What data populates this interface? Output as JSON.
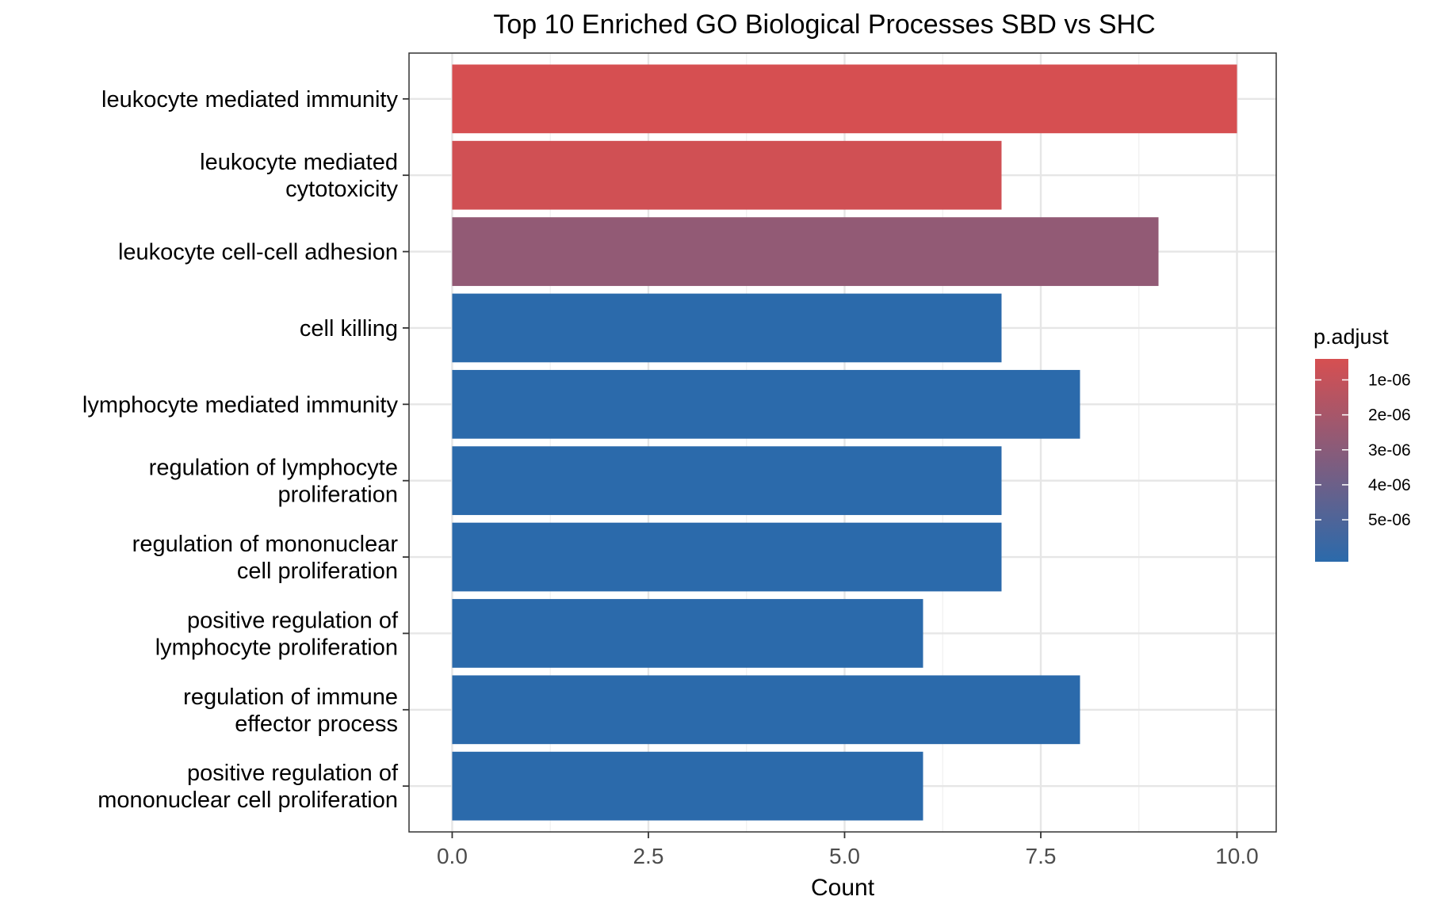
{
  "chart_data": {
    "type": "bar",
    "orientation": "horizontal",
    "title": "Top 10 Enriched GO Biological Processes SBD vs SHC",
    "xlabel": "Count",
    "ylabel": "",
    "xlim": [
      -0.55,
      10.5
    ],
    "x_ticks": [
      0,
      2.5,
      5,
      7.5,
      10
    ],
    "x_tick_labels": [
      "0.0",
      "2.5",
      "5.0",
      "7.5",
      "10.0"
    ],
    "grid": true,
    "categories": [
      "leukocyte mediated immunity",
      "leukocyte mediated\ncytotoxicity",
      "leukocyte cell-cell adhesion",
      "cell killing",
      "lymphocyte mediated immunity",
      "regulation of lymphocyte\nproliferation",
      "regulation of mononuclear\ncell proliferation",
      "positive regulation of\nlymphocyte proliferation",
      "regulation of immune\neffector process",
      "positive regulation of\nmononuclear cell proliferation"
    ],
    "values": [
      10,
      7,
      9,
      7,
      8,
      7,
      7,
      6,
      8,
      6
    ],
    "p_adjust": [
      4e-07,
      6e-07,
      2.7e-06,
      6.2e-06,
      6.2e-06,
      6.2e-06,
      6.2e-06,
      6.2e-06,
      6.2e-06,
      6.2e-06
    ],
    "legend": {
      "title": "p.adjust",
      "placement": "right",
      "labels": [
        "1e-06",
        "2e-06",
        "3e-06",
        "4e-06",
        "5e-06"
      ],
      "values": [
        1e-06,
        2e-06,
        3e-06,
        4e-06,
        5e-06
      ],
      "min": 4e-07,
      "max": 6.2e-06,
      "color_low": "#d64f51",
      "color_high": "#2b6aab"
    }
  }
}
